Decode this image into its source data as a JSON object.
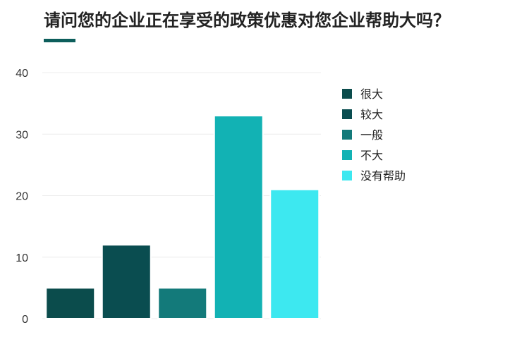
{
  "chart_data": {
    "type": "bar",
    "title": "请问您的企业正在享受的政策优惠对您企业帮助大吗？",
    "categories": [
      "很大",
      "较大",
      "一般",
      "不大",
      "没有帮助"
    ],
    "values": [
      5,
      12,
      5,
      33,
      21
    ],
    "colors": [
      "#0b4c4c",
      "#0a4d50",
      "#137a7a",
      "#12b2b4",
      "#3de8f0"
    ],
    "ylim": [
      0,
      40
    ],
    "yticks": [
      0,
      10,
      20,
      30,
      40
    ],
    "grid": true,
    "legend": {
      "placement": "right",
      "items": [
        "很大",
        "较大",
        "一般",
        "不大",
        "没有帮助"
      ]
    },
    "xlabel": "",
    "ylabel": ""
  }
}
